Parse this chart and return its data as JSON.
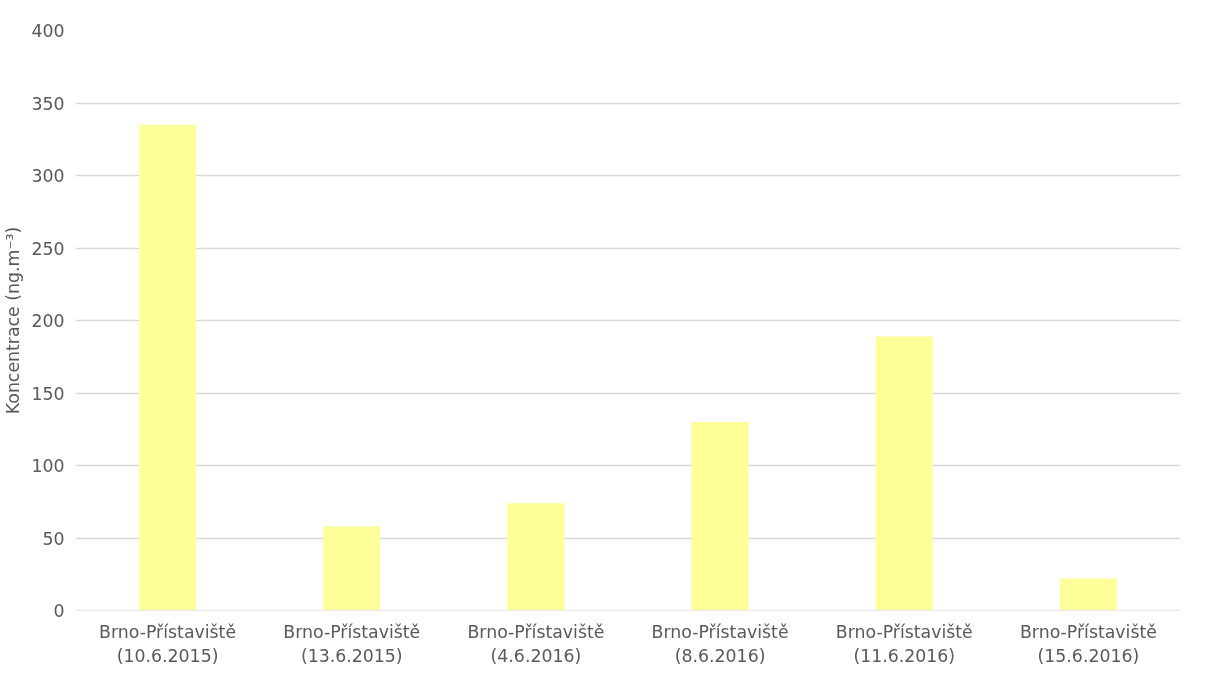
{
  "chart_data": {
    "type": "bar",
    "ylabel": "Koncentrace (ng.m⁻³)",
    "categories": [
      "Brno-Přístaviště\n(10.6.2015)",
      "Brno-Přístaviště\n(13.6.2015)",
      "Brno-Přístaviště\n(4.6.2016)",
      "Brno-Přístaviště\n(8.6.2016)",
      "Brno-Přístaviště\n(11.6.2016)",
      "Brno-Přístaviště\n(15.6.2016)"
    ],
    "values": [
      335,
      58,
      74,
      130,
      189,
      22
    ],
    "color": "#ffff99",
    "ylim": [
      0,
      400
    ],
    "yticks": [
      0,
      50,
      100,
      150,
      200,
      250,
      300,
      350,
      400
    ],
    "grid": "y"
  }
}
